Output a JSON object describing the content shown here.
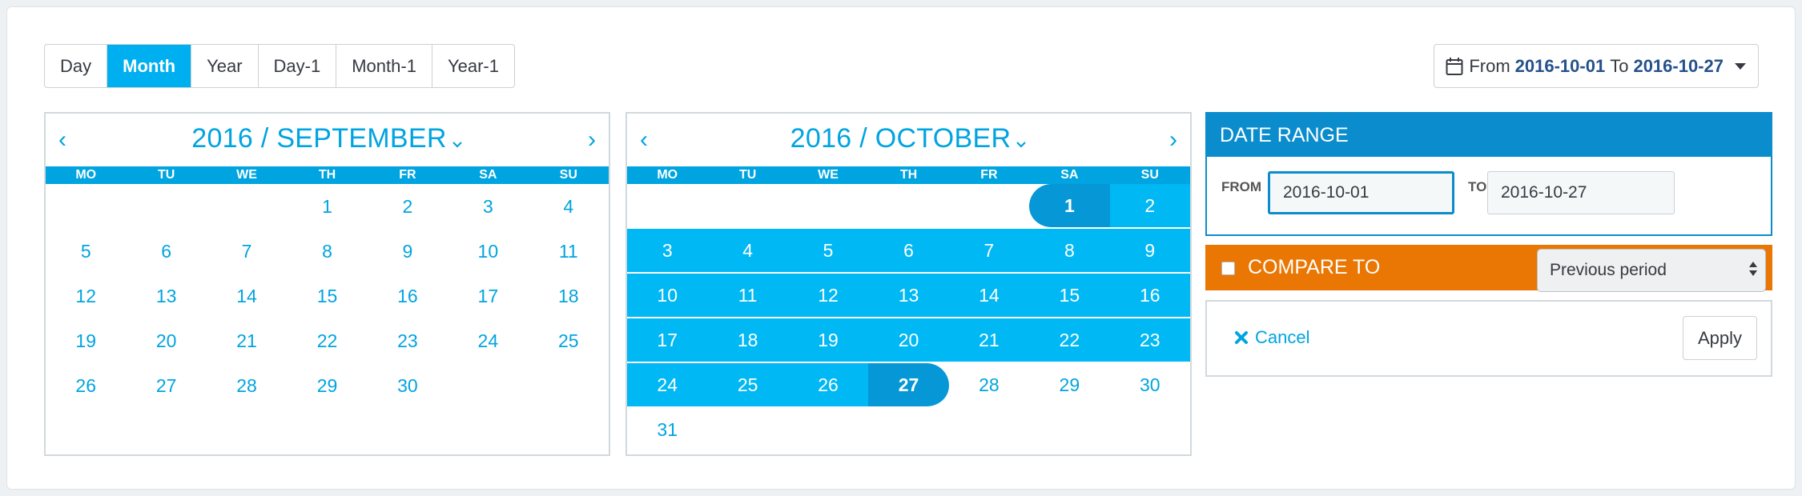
{
  "period_buttons": [
    {
      "label": "Day",
      "active": false
    },
    {
      "label": "Month",
      "active": true
    },
    {
      "label": "Year",
      "active": false
    },
    {
      "label": "Day-1",
      "active": false
    },
    {
      "label": "Month-1",
      "active": false
    },
    {
      "label": "Year-1",
      "active": false
    }
  ],
  "range_toggle": {
    "from_word": "From",
    "from_date": "2016-10-01",
    "to_word": "To",
    "to_date": "2016-10-27"
  },
  "weekdays": [
    "MO",
    "TU",
    "WE",
    "TH",
    "FR",
    "SA",
    "SU"
  ],
  "calendars": [
    {
      "title": "2016 / SEPTEMBER",
      "prev": "‹",
      "next": "›",
      "leading_blanks": 3,
      "days": 30,
      "range_start": null,
      "range_end": null
    },
    {
      "title": "2016 / OCTOBER",
      "prev": "‹",
      "next": "›",
      "leading_blanks": 5,
      "days": 31,
      "range_start": 1,
      "range_end": 27
    }
  ],
  "date_range": {
    "heading": "DATE RANGE",
    "from_label": "FROM",
    "from_value": "2016-10-01",
    "to_label": "TO",
    "to_value": "2016-10-27"
  },
  "compare": {
    "label": "COMPARE TO",
    "checked": false,
    "selected_option": "Previous period"
  },
  "actions": {
    "cancel_label": "Cancel",
    "apply_label": "Apply"
  },
  "icons": {
    "calendar": "calendar-icon",
    "caret": "caret-down-icon",
    "chevron": "chevron-down-icon",
    "cancel": "close-icon"
  },
  "colors": {
    "accent": "#00a4e0",
    "active_button": "#00aff0",
    "range_fill": "#00b8f4",
    "range_ends": "#0597d6",
    "date_range_header": "#0b8ccc",
    "compare_bar": "#ea7703",
    "date_text": "#25518a"
  }
}
